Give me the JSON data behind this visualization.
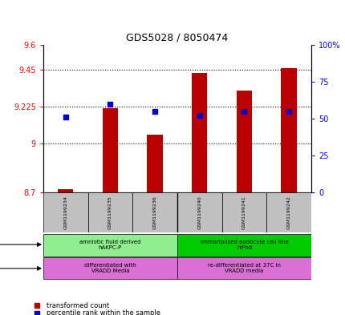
{
  "title": "GDS5028 / 8050474",
  "samples": [
    "GSM1199234",
    "GSM1199235",
    "GSM1199236",
    "GSM1199240",
    "GSM1199241",
    "GSM1199242"
  ],
  "red_values": [
    8.72,
    9.215,
    9.05,
    9.43,
    9.32,
    9.46
  ],
  "blue_values": [
    51,
    60,
    55,
    52,
    55,
    55
  ],
  "ylim_left": [
    8.7,
    9.6
  ],
  "ylim_right": [
    0,
    100
  ],
  "yticks_left": [
    8.7,
    9.0,
    9.225,
    9.45,
    9.6
  ],
  "ytick_labels_left": [
    "8.7",
    "9",
    "9.225",
    "9.45",
    "9.6"
  ],
  "yticks_right": [
    0,
    25,
    50,
    75,
    100
  ],
  "ytick_labels_right": [
    "0",
    "25",
    "50",
    "75",
    "100%"
  ],
  "hlines": [
    9.225,
    9.0,
    9.45
  ],
  "cell_line_groups": [
    {
      "label": "amniotic fluid derived\nhAKPC-P",
      "start": 0,
      "end": 3,
      "color": "#90EE90"
    },
    {
      "label": "immortalized podocyte cell line\nhIPod",
      "start": 3,
      "end": 6,
      "color": "#00CC00"
    }
  ],
  "growth_protocol_groups": [
    {
      "label": "differentiated with\nVRADD Media",
      "start": 0,
      "end": 3,
      "color": "#DA70D6"
    },
    {
      "label": "re-differentiated at 37C in\nVRADD media",
      "start": 3,
      "end": 6,
      "color": "#DA70D6"
    }
  ],
  "bar_color": "#BB0000",
  "dot_color": "#0000CC",
  "bar_width": 0.35,
  "sample_area_color": "#C0C0C0",
  "grid_linestyle": "dotted"
}
